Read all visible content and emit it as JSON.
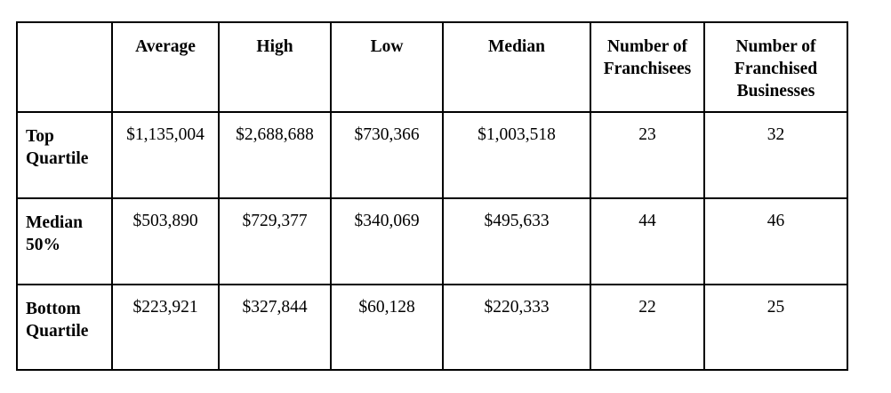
{
  "table": {
    "headers": [
      "",
      "Average",
      "High",
      "Low",
      "Median",
      "Number of Franchisees",
      "Number of Franchised Businesses"
    ],
    "header_lines": {
      "franchisees": [
        "Number of",
        "Franchisees"
      ],
      "businesses": [
        "Number of",
        "Franchised",
        "Businesses"
      ]
    },
    "rows": [
      {
        "label_lines": [
          "Top",
          "Quartile"
        ],
        "average": "$1,135,004",
        "high": "$2,688,688",
        "low": "$730,366",
        "median": "$1,003,518",
        "franchisees": "23",
        "businesses": "32"
      },
      {
        "label_lines": [
          "Median",
          "50%"
        ],
        "average": "$503,890",
        "high": "$729,377",
        "low": "$340,069",
        "median": "$495,633",
        "franchisees": "44",
        "businesses": "46"
      },
      {
        "label_lines": [
          "Bottom",
          "Quartile"
        ],
        "average": "$223,921",
        "high": "$327,844",
        "low": "$60,128",
        "median": "$220,333",
        "franchisees": "22",
        "businesses": "25"
      }
    ]
  }
}
